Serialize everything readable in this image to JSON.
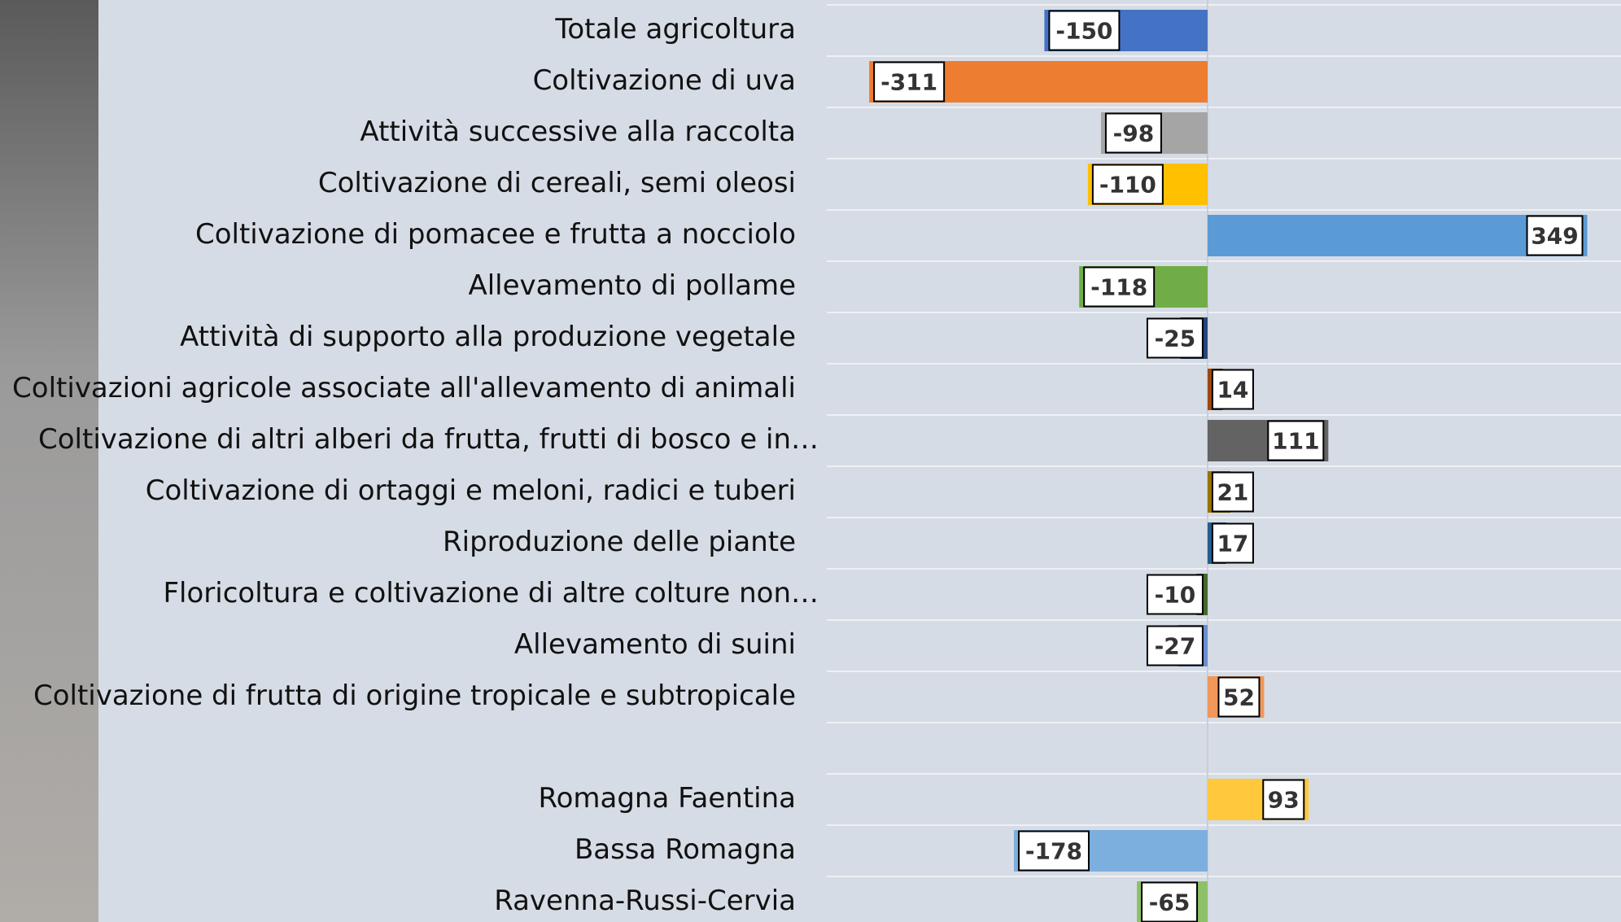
{
  "chart_data": {
    "type": "bar",
    "orientation": "horizontal",
    "categories": [
      "Totale agricoltura",
      "Coltivazione di uva",
      "Attività successive alla raccolta",
      "Coltivazione di cereali, semi oleosi",
      "Coltivazione di pomacee e frutta a nocciolo",
      "Allevamento di pollame",
      "Attività di supporto alla produzione vegetale",
      "Coltivazioni agricole associate all'allevamento di animali",
      "Coltivazione di altri alberi da frutta, frutti di bosco e in…",
      "Coltivazione di ortaggi e meloni, radici e tuberi",
      "Riproduzione delle piante",
      "Floricoltura e coltivazione di altre colture non…",
      "Allevamento di suini",
      "Coltivazione di frutta di origine tropicale e subtropicale",
      null,
      "Romagna Faentina",
      "Bassa Romagna",
      "Ravenna-Russi-Cervia"
    ],
    "values": [
      -150,
      -311,
      -98,
      -110,
      349,
      -118,
      -25,
      14,
      111,
      21,
      17,
      -10,
      -27,
      52,
      null,
      93,
      -178,
      -65
    ],
    "colors": [
      "#4472c4",
      "#ed7d31",
      "#a5a5a5",
      "#ffc000",
      "#5b9bd5",
      "#70ad47",
      "#264478",
      "#9e480e",
      "#636363",
      "#997300",
      "#255e91",
      "#43682b",
      "#698ed0",
      "#f1975a",
      null,
      "#ffc83d",
      "#7cafdd",
      "#8cc168"
    ],
    "xlim": [
      -350,
      380
    ]
  }
}
